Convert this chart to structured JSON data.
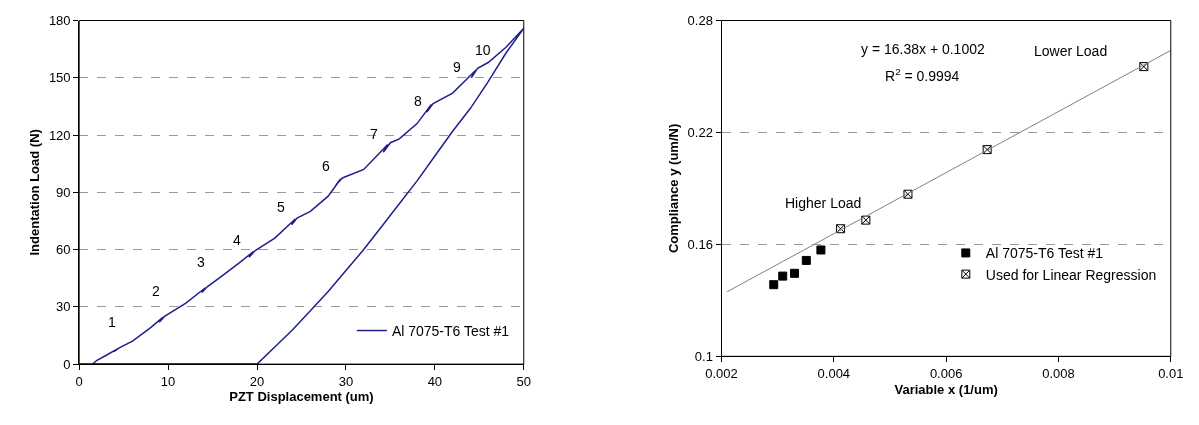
{
  "chart_data": [
    {
      "type": "line",
      "xlabel": "PZT Displacement (um)",
      "ylabel": "Indentation Load (N)",
      "xlim": [
        0,
        50
      ],
      "ylim": [
        0,
        180
      ],
      "xticks": [
        0,
        10,
        20,
        30,
        40,
        50
      ],
      "yticks": [
        0,
        30,
        60,
        90,
        120,
        150,
        180
      ],
      "grid": "y",
      "legend": "bottom right",
      "marker": "none",
      "line_style": "solid",
      "series": [
        {
          "name": "Al 7075-T6 Test #1",
          "color": "#1f1f8f",
          "x": [
            1.5,
            2,
            3,
            4.3,
            3.9,
            4.5,
            6,
            8,
            9.4,
            9.0,
            9.6,
            12,
            14.2,
            13.8,
            14.4,
            16,
            18,
            19.6,
            19.1,
            19.8,
            22,
            24.3,
            23.9,
            24.5,
            26,
            28,
            29.4,
            28.9,
            29.6,
            32,
            34.7,
            34.2,
            35,
            36,
            38,
            39.6,
            39.1,
            39.8,
            42,
            44.6,
            44.1,
            44.8,
            46,
            48,
            50,
            48,
            46,
            44,
            42,
            40,
            38,
            36,
            34,
            32,
            30,
            28,
            26,
            24,
            22,
            20,
            10,
            0
          ],
          "values": [
            0,
            2,
            4.5,
            8,
            6.5,
            8.5,
            12,
            19,
            24.5,
            22,
            25,
            32,
            40,
            37.5,
            40.5,
            46,
            53,
            59,
            56,
            59.5,
            66,
            76,
            73,
            76.5,
            80,
            88,
            97,
            94,
            97.5,
            102,
            115,
            111,
            116,
            118,
            126,
            136,
            132,
            136.5,
            142,
            154,
            150,
            155,
            158,
            166,
            176,
            163,
            148,
            134,
            122,
            109,
            96,
            84,
            72,
            60,
            49,
            38,
            28,
            18,
            9,
            0,
            0,
            0
          ]
        }
      ],
      "annotations": [
        "1",
        "2",
        "3",
        "4",
        "5",
        "6",
        "7",
        "8",
        "9",
        "10"
      ]
    },
    {
      "type": "scatter",
      "xlabel": "Variable x (1/um)",
      "ylabel": "Compliance y (um/N)",
      "xlim": [
        0.002,
        0.01
      ],
      "ylim": [
        0.1,
        0.28
      ],
      "xticks": [
        0.002,
        0.004,
        0.006,
        0.008,
        0.01
      ],
      "yticks": [
        0.1,
        0.16,
        0.22,
        0.28
      ],
      "grid": "y",
      "legend": "bottom right",
      "series": [
        {
          "name": "Al 7075-T6 Test #1",
          "color": "#000000",
          "marker": "square",
          "x": [
            0.00293,
            0.00309,
            0.0033,
            0.00351,
            0.00377
          ],
          "values": [
            0.1384,
            0.143,
            0.1445,
            0.1514,
            0.157
          ]
        },
        {
          "name": "Used for Linear Regression",
          "color": "#000000",
          "marker": "cross",
          "x": [
            0.00412,
            0.00457,
            0.00532,
            0.00673,
            0.00952
          ],
          "values": [
            0.1684,
            0.173,
            0.1869,
            0.2108,
            0.2553
          ]
        },
        {
          "type": "line",
          "color": "#808080",
          "marker": "none",
          "x": [
            0.0021,
            0.01
          ],
          "values": [
            0.1346,
            0.264
          ]
        }
      ],
      "annotations": [
        "y = 16.38x + 0.1002",
        "R$^{2}$ = 0.9994",
        "Higher Load",
        "Lower Load"
      ]
    }
  ]
}
